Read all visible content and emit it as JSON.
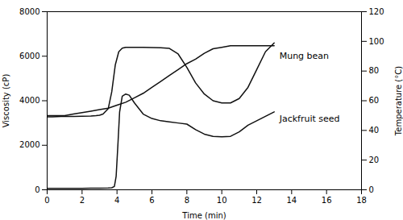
{
  "chart_data": {
    "type": "line",
    "xlabel": "Time (min)",
    "ylabel": "Viscosity (cP)",
    "y2label": "Temperature (°C)",
    "xlim": [
      0,
      18
    ],
    "ylim": [
      0,
      8000
    ],
    "y2lim": [
      0,
      120
    ],
    "xticks": [
      0,
      2,
      4,
      6,
      8,
      10,
      12,
      14,
      16,
      18
    ],
    "yticks": [
      0,
      2000,
      4000,
      6000,
      8000
    ],
    "y2ticks": [
      0,
      20,
      40,
      60,
      80,
      100,
      120
    ],
    "series": [
      {
        "color": "#111111",
        "x": [
          0,
          0.3,
          0.8,
          1.5,
          2.0,
          2.5,
          2.8,
          3.0,
          3.2,
          3.5,
          3.7,
          3.9,
          4.1,
          4.3,
          4.5,
          4.7,
          5.0,
          5.5,
          6.0,
          6.5,
          7.0,
          7.5,
          8.0,
          8.5,
          9.0,
          9.5,
          10.0,
          10.5,
          11.0,
          11.5,
          12.0,
          12.5,
          13.0
        ],
        "values": [
          3280,
          3280,
          3290,
          3290,
          3300,
          3310,
          3330,
          3350,
          3400,
          3650,
          4400,
          5600,
          6200,
          6360,
          6400,
          6400,
          6400,
          6400,
          6390,
          6380,
          6350,
          6100,
          5500,
          4800,
          4300,
          4000,
          3900,
          3900,
          4100,
          4600,
          5400,
          6200,
          6600
        ]
      },
      {
        "color": "#111111",
        "x": [
          0,
          0.5,
          1.0,
          1.5,
          2.0,
          2.5,
          3.0,
          3.5,
          3.7,
          3.85,
          3.95,
          4.05,
          4.15,
          4.3,
          4.5,
          4.7,
          5.0,
          5.5,
          6.0,
          6.5,
          7.0,
          7.5,
          8.0,
          8.5,
          9.0,
          9.5,
          10.0,
          10.5,
          11.0,
          11.5,
          12.0,
          12.5,
          13.0
        ],
        "values": [
          60,
          60,
          60,
          65,
          65,
          70,
          75,
          80,
          90,
          150,
          600,
          2000,
          3500,
          4200,
          4300,
          4250,
          3900,
          3400,
          3200,
          3100,
          3050,
          3000,
          2950,
          2700,
          2500,
          2400,
          2380,
          2400,
          2600,
          2900,
          3100,
          3300,
          3500
        ]
      },
      {
        "color": "#111111",
        "axis": "y2",
        "x": [
          0,
          0.5,
          1.0,
          1.5,
          2.0,
          2.5,
          3.0,
          3.5,
          4.0,
          4.5,
          5.0,
          5.5,
          6.0,
          6.5,
          7.0,
          7.5,
          8.0,
          8.5,
          9.0,
          9.5,
          10.0,
          10.5,
          11.0,
          11.5,
          12.0,
          12.5,
          13.0
        ],
        "values": [
          50,
          50,
          50,
          51,
          52,
          53,
          54,
          55,
          57,
          59,
          62,
          65,
          69,
          73,
          77,
          81,
          85,
          88,
          92,
          95,
          96,
          97,
          97,
          97,
          97,
          97,
          97
        ]
      }
    ],
    "annotations": [
      {
        "text": "Mung bean",
        "x": 13.3,
        "y": 6000
      },
      {
        "text": "Jackfruit seed",
        "x": 13.3,
        "y": 3200
      }
    ]
  }
}
